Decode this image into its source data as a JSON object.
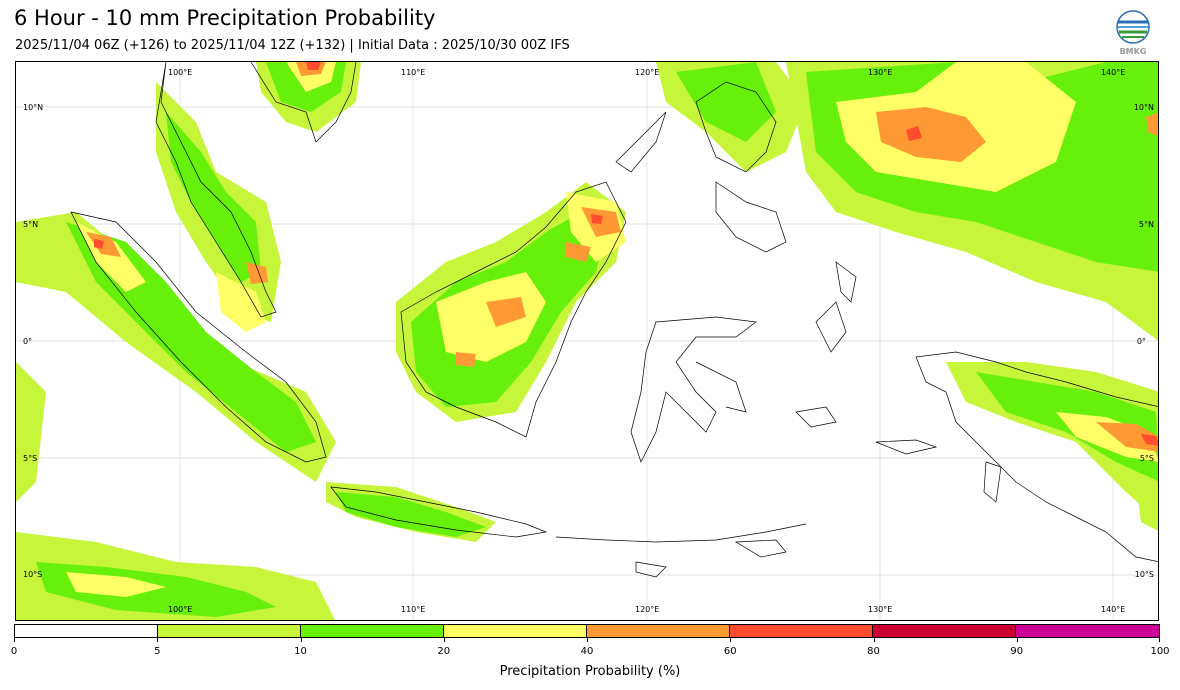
{
  "header": {
    "title": "6 Hour - 10 mm Precipitation Probability",
    "subtitle": "2025/11/04 06Z (+126) to 2025/11/04 12Z (+132) | Initial Data : 2025/10/30 00Z IFS",
    "logo_text": "BMKG"
  },
  "map": {
    "lon_labels_top": [
      "100°E",
      "110°E",
      "120°E",
      "130°E",
      "140°E"
    ],
    "lon_labels_bottom": [
      "100°E",
      "110°E",
      "120°E",
      "130°E",
      "140°E"
    ],
    "lat_labels_left": [
      "10°N",
      "5°N",
      "0°",
      "5°S",
      "10°S"
    ],
    "lat_labels_right": [
      "10°N",
      "5°N",
      "0°",
      "5°S",
      "10°S"
    ]
  },
  "colorbar": {
    "title": "Precipitation Probability (%)",
    "ticks": [
      "0",
      "5",
      "10",
      "20",
      "40",
      "60",
      "80",
      "90",
      "100"
    ],
    "colors": [
      "#ffffff",
      "#c6f53a",
      "#66f00a",
      "#ffff66",
      "#ff9933",
      "#ff4d2e",
      "#cc0033",
      "#cc0099"
    ]
  }
}
